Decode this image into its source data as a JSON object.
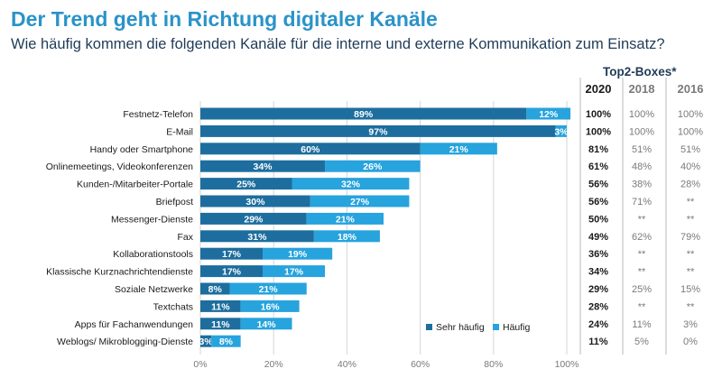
{
  "header": {
    "title": "Der Trend geht in Richtung digitaler Kanäle",
    "subtitle": "Wie häufig kommen die folgenden Kanäle für die interne und externe Kommunikation zum Einsatz?",
    "top2_label": "Top2-Boxes*"
  },
  "colors": {
    "sehr_haeufig": "#1d6e9e",
    "haeufig": "#27a3dd",
    "title": "#2a93c9",
    "grid": "#d5d5d5",
    "dark_text": "#1a1a1a",
    "muted_text": "#7a7a7a"
  },
  "chart_data": {
    "type": "bar",
    "orientation": "horizontal",
    "stacked": true,
    "categories": [
      "Festnetz-Telefon",
      "E-Mail",
      "Handy oder Smartphone",
      "Onlinemeetings, Videokonferenzen",
      "Kunden-/Mitarbeiter-Portale",
      "Briefpost",
      "Messenger-Dienste",
      "Fax",
      "Kollaborationstools",
      "Klassische Kurznachrichtendienste",
      "Soziale Netzwerke",
      "Textchats",
      "Apps für Fachanwendungen",
      "Weblogs/ Mikroblogging-Dienste"
    ],
    "series": [
      {
        "name": "Sehr häufig",
        "values": [
          89,
          97,
          60,
          34,
          25,
          30,
          29,
          31,
          17,
          17,
          8,
          11,
          11,
          3
        ]
      },
      {
        "name": "Häufig",
        "values": [
          12,
          3,
          21,
          26,
          32,
          27,
          21,
          18,
          19,
          17,
          21,
          16,
          14,
          8
        ]
      }
    ],
    "x_ticks": [
      "0%",
      "20%",
      "40%",
      "60%",
      "80%",
      "100%"
    ],
    "xlim": [
      0,
      100
    ],
    "legend_position": "bottom-right",
    "top2_boxes": {
      "columns": [
        "2020",
        "2018",
        "2016"
      ],
      "rows": [
        [
          "100%",
          "100%",
          "100%"
        ],
        [
          "100%",
          "100%",
          "100%"
        ],
        [
          "81%",
          "51%",
          "51%"
        ],
        [
          "61%",
          "48%",
          "40%"
        ],
        [
          "56%",
          "38%",
          "28%"
        ],
        [
          "56%",
          "71%",
          "**"
        ],
        [
          "50%",
          "**",
          "**"
        ],
        [
          "49%",
          "62%",
          "79%"
        ],
        [
          "36%",
          "**",
          "**"
        ],
        [
          "34%",
          "**",
          "**"
        ],
        [
          "29%",
          "25%",
          "15%"
        ],
        [
          "28%",
          "**",
          "**"
        ],
        [
          "24%",
          "11%",
          "3%"
        ],
        [
          "11%",
          "5%",
          "0%"
        ]
      ]
    }
  }
}
